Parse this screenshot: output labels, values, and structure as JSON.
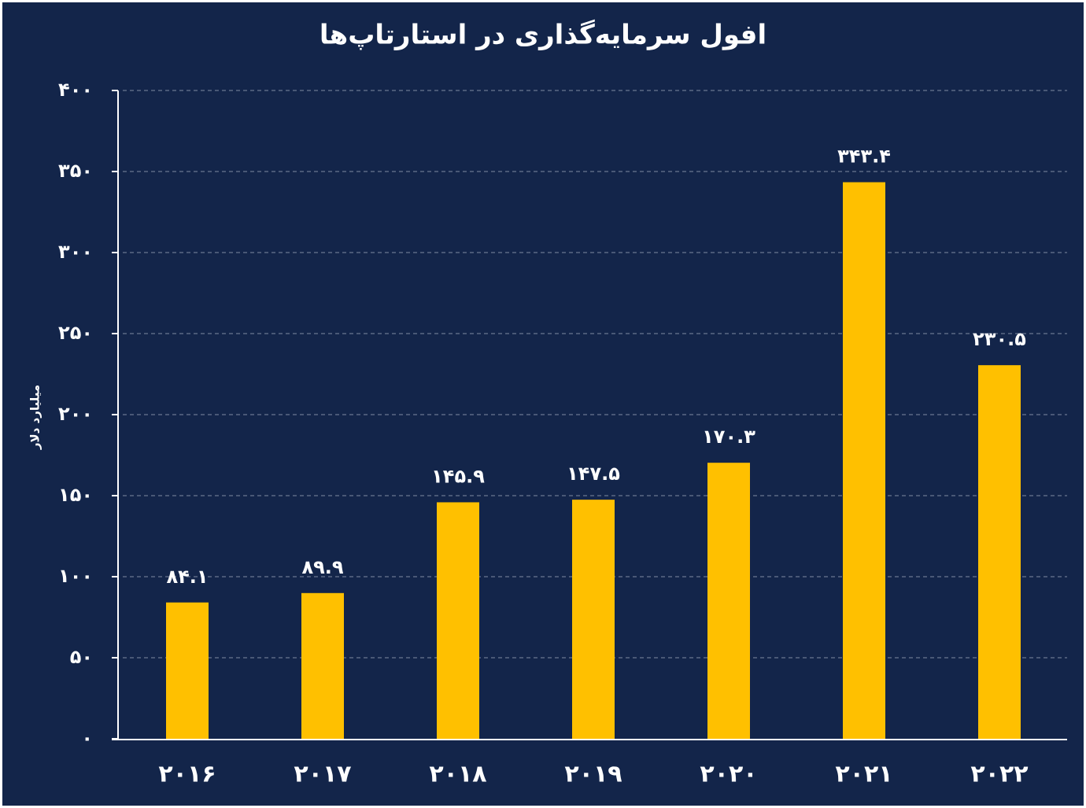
{
  "chart_data": {
    "type": "bar",
    "title": "افول سرمایه‌گذاری در استارتاپ‌ها",
    "y_label": "میلیارد دلار",
    "categories": [
      "۲۰۱۶",
      "۲۰۱۷",
      "۲۰۱۸",
      "۲۰۱۹",
      "۲۰۲۰",
      "۲۰۲۱",
      "۲۰۲۲"
    ],
    "values": [
      84.1,
      89.9,
      145.9,
      147.5,
      170.3,
      343.4,
      230.5
    ],
    "value_labels": [
      "۸۴.۱",
      "۸۹.۹",
      "۱۴۵.۹",
      "۱۴۷.۵",
      "۱۷۰.۳",
      "۳۴۳.۴",
      "۲۳۰.۵"
    ],
    "color": "#ffc000",
    "ylim": [
      0,
      400
    ],
    "yticks": [
      {
        "value": 0,
        "label": "۰"
      },
      {
        "value": 50,
        "label": "۵۰"
      },
      {
        "value": 100,
        "label": "۱۰۰"
      },
      {
        "value": 150,
        "label": "۱۵۰"
      },
      {
        "value": 200,
        "label": "۲۰۰"
      },
      {
        "value": 250,
        "label": "۲۵۰"
      },
      {
        "value": 300,
        "label": "۳۰۰"
      },
      {
        "value": 350,
        "label": "۳۵۰"
      },
      {
        "value": 400,
        "label": "۴۰۰"
      }
    ],
    "grid": true
  }
}
